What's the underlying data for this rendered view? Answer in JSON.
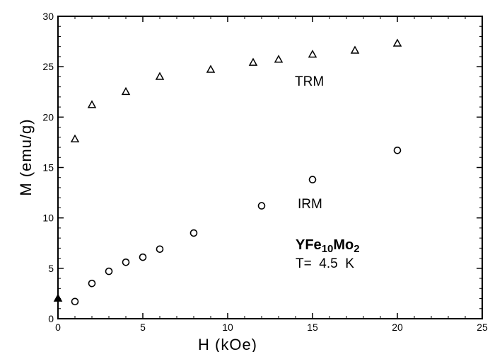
{
  "chart_data": {
    "type": "scatter",
    "xlabel": "H (kOe)",
    "ylabel": "M (emu/g)",
    "xlim": [
      0,
      25
    ],
    "ylim": [
      0,
      30
    ],
    "x_ticks": [
      "0",
      "5",
      "10",
      "15",
      "20",
      "25"
    ],
    "y_ticks": [
      "0",
      "5",
      "10",
      "15",
      "20",
      "25",
      "30"
    ],
    "grid": false,
    "series": [
      {
        "name": "TRM",
        "marker": "triangle-open",
        "x": [
          1,
          2,
          4,
          6,
          9,
          11.5,
          13,
          15,
          17.5,
          20
        ],
        "y": [
          17.8,
          21.2,
          22.5,
          24.0,
          24.7,
          25.4,
          25.7,
          26.2,
          26.6,
          27.3
        ]
      },
      {
        "name": "IRM",
        "marker": "circle-open",
        "x": [
          1,
          2,
          3,
          4,
          5,
          6,
          8,
          12,
          15,
          20
        ],
        "y": [
          1.7,
          3.5,
          4.7,
          5.6,
          6.1,
          6.9,
          8.5,
          11.2,
          13.8,
          16.7
        ]
      },
      {
        "name": "",
        "marker": "triangle-filled",
        "x": [
          0
        ],
        "y": [
          2.0
        ]
      }
    ],
    "annotations": {
      "compound_main": "YFe",
      "compound_sub1": "10",
      "compound_mid": "Mo",
      "compound_sub2": "2",
      "temperature": "T=  4.5  K"
    }
  }
}
